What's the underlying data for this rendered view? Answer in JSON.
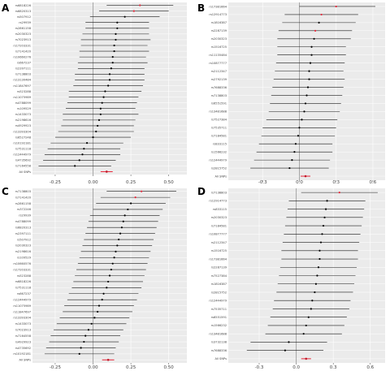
{
  "chart_data": [
    {
      "type": "scatter",
      "panel_label": "A",
      "xlim": [
        -0.4,
        0.62
      ],
      "xticks": [
        "-0.25",
        "0.00",
        "0.25",
        "0.50"
      ],
      "xtick_values": [
        -0.25,
        0.0,
        0.25,
        0.5
      ],
      "reference_line": 0,
      "grid": true,
      "summary_label": "All SNPs",
      "summary": {
        "estimate": 0.09,
        "low": 0.05,
        "high": 0.13
      },
      "snps": [
        {
          "snp": "rs6818226",
          "estimate": 0.31,
          "low": 0.09,
          "high": 0.53,
          "highlight": true
        },
        {
          "snp": "rs6820313",
          "estimate": 0.27,
          "low": 0.04,
          "high": 0.5,
          "highlight": true
        },
        {
          "snp": "rs507912",
          "estimate": 0.21,
          "low": -0.02,
          "high": 0.44,
          "highlight": false
        },
        {
          "snp": "rs29939",
          "estimate": 0.16,
          "low": -0.05,
          "high": 0.37,
          "highlight": false
        },
        {
          "snp": "rs2861158",
          "estimate": 0.16,
          "low": -0.05,
          "high": 0.37,
          "highlight": false
        },
        {
          "snp": "rs2030323",
          "estimate": 0.15,
          "low": -0.07,
          "high": 0.37,
          "highlight": false
        },
        {
          "snp": "rs7023913",
          "estimate": 0.15,
          "low": -0.08,
          "high": 0.38,
          "highlight": false
        },
        {
          "snp": "rs17203331",
          "estimate": 0.14,
          "low": -0.08,
          "high": 0.36,
          "highlight": false
        },
        {
          "snp": "rs7141420",
          "estimate": 0.14,
          "low": -0.09,
          "high": 0.37,
          "highlight": false
        },
        {
          "snp": "rs10660276",
          "estimate": 0.13,
          "low": -0.09,
          "high": 0.35,
          "highlight": false
        },
        {
          "snp": "rs667237",
          "estimate": 0.13,
          "low": -0.1,
          "high": 0.36,
          "highlight": false
        },
        {
          "snp": "rs2397111",
          "estimate": 0.12,
          "low": -0.1,
          "high": 0.34,
          "highlight": false
        },
        {
          "snp": "rs7138803",
          "estimate": 0.11,
          "low": -0.12,
          "high": 0.34,
          "highlight": false
        },
        {
          "snp": "rs13130484",
          "estimate": 0.11,
          "low": -0.12,
          "high": 0.34,
          "highlight": false
        },
        {
          "snp": "rs11847697",
          "estimate": 0.1,
          "low": -0.13,
          "high": 0.33,
          "highlight": false
        },
        {
          "snp": "rs523288",
          "estimate": 0.08,
          "low": -0.16,
          "high": 0.32,
          "highlight": false
        },
        {
          "snp": "rs11075989",
          "estimate": 0.07,
          "low": -0.16,
          "high": 0.3,
          "highlight": false
        },
        {
          "snp": "rs4788099",
          "estimate": 0.06,
          "low": -0.17,
          "high": 0.29,
          "highlight": false
        },
        {
          "snp": "rs109529",
          "estimate": 0.05,
          "low": -0.18,
          "high": 0.28,
          "highlight": false
        },
        {
          "snp": "rs1433073",
          "estimate": 0.05,
          "low": -0.2,
          "high": 0.3,
          "highlight": false
        },
        {
          "snp": "rs2198616",
          "estimate": 0.04,
          "low": -0.2,
          "high": 0.28,
          "highlight": false
        },
        {
          "snp": "rs4929923",
          "estimate": 0.03,
          "low": -0.21,
          "high": 0.27,
          "highlight": false
        },
        {
          "snp": "rs13393304",
          "estimate": 0.02,
          "low": -0.23,
          "high": 0.27,
          "highlight": false
        },
        {
          "snp": "rs6527248",
          "estimate": 0.0,
          "low": -0.25,
          "high": 0.25,
          "highlight": false
        },
        {
          "snp": "rs10192181",
          "estimate": -0.04,
          "low": -0.28,
          "high": 0.2,
          "highlight": false
        },
        {
          "snp": "rs7531118",
          "estimate": -0.06,
          "low": -0.3,
          "high": 0.18,
          "highlight": false
        },
        {
          "snp": "rs12444979",
          "estimate": -0.07,
          "low": -0.32,
          "high": 0.18,
          "highlight": false
        },
        {
          "snp": "rs4735692",
          "estimate": -0.09,
          "low": -0.33,
          "high": 0.15,
          "highlight": false
        },
        {
          "snp": "rs7164558",
          "estimate": -0.12,
          "low": -0.36,
          "high": 0.12,
          "highlight": false
        }
      ]
    },
    {
      "type": "scatter",
      "panel_label": "B",
      "xlim": [
        -0.58,
        0.7
      ],
      "xticks": [
        "-0.3",
        "0.0",
        "0.3",
        "0.6"
      ],
      "xtick_values": [
        -0.3,
        0.0,
        0.3,
        0.6
      ],
      "reference_line": 0,
      "grid": true,
      "summary_label": "All SNPs",
      "summary": {
        "estimate": 0.05,
        "low": 0.01,
        "high": 0.09
      },
      "snps": [
        {
          "snp": "rs17381664",
          "estimate": 0.3,
          "low": 0.0,
          "high": 0.62,
          "highlight": true
        },
        {
          "snp": "rs12914773",
          "estimate": 0.18,
          "low": -0.12,
          "high": 0.48,
          "highlight": true
        },
        {
          "snp": "rs1816387",
          "estimate": 0.16,
          "low": -0.14,
          "high": 0.46,
          "highlight": false
        },
        {
          "snp": "rs2287139",
          "estimate": 0.13,
          "low": -0.17,
          "high": 0.43,
          "highlight": true
        },
        {
          "snp": "rs2030323",
          "estimate": 0.12,
          "low": -0.18,
          "high": 0.42,
          "highlight": false
        },
        {
          "snp": "rs1516725",
          "estimate": 0.1,
          "low": -0.18,
          "high": 0.38,
          "highlight": false
        },
        {
          "snp": "rs11135484",
          "estimate": 0.1,
          "low": -0.18,
          "high": 0.38,
          "highlight": false
        },
        {
          "snp": "rs10877777",
          "estimate": 0.09,
          "low": -0.19,
          "high": 0.37,
          "highlight": false
        },
        {
          "snp": "rs2112347",
          "estimate": 0.08,
          "low": -0.2,
          "high": 0.36,
          "highlight": false
        },
        {
          "snp": "rs2792139",
          "estimate": 0.08,
          "low": -0.21,
          "high": 0.37,
          "highlight": false
        },
        {
          "snp": "rs7688336",
          "estimate": 0.07,
          "low": -0.22,
          "high": 0.36,
          "highlight": false
        },
        {
          "snp": "rs7138803",
          "estimate": 0.06,
          "low": -0.23,
          "high": 0.35,
          "highlight": false
        },
        {
          "snp": "rs6551591",
          "estimate": 0.05,
          "low": -0.24,
          "high": 0.34,
          "highlight": false
        },
        {
          "snp": "rs13481688",
          "estimate": 0.04,
          "low": -0.25,
          "high": 0.33,
          "highlight": false
        },
        {
          "snp": "rs7527384",
          "estimate": 0.02,
          "low": -0.27,
          "high": 0.31,
          "highlight": false
        },
        {
          "snp": "rs7535711",
          "estimate": 0.0,
          "low": -0.3,
          "high": 0.3,
          "highlight": false
        },
        {
          "snp": "rs7184581",
          "estimate": -0.01,
          "low": -0.31,
          "high": 0.29,
          "highlight": false
        },
        {
          "snp": "rs833115",
          "estimate": -0.03,
          "low": -0.33,
          "high": 0.27,
          "highlight": false
        },
        {
          "snp": "rs1566232",
          "estimate": -0.04,
          "low": -0.35,
          "high": 0.27,
          "highlight": false
        },
        {
          "snp": "rs12444979",
          "estimate": -0.06,
          "low": -0.37,
          "high": 0.25,
          "highlight": false
        },
        {
          "snp": "rs2815752",
          "estimate": -0.08,
          "low": -0.4,
          "high": 0.24,
          "highlight": false
        }
      ]
    },
    {
      "type": "scatter",
      "panel_label": "C",
      "xlim": [
        -0.4,
        0.62
      ],
      "xticks": [
        "-0.25",
        "0.00",
        "0.25",
        "0.50"
      ],
      "xtick_values": [
        -0.25,
        0.0,
        0.25,
        0.5
      ],
      "reference_line": 0,
      "grid": true,
      "summary_label": "All SNPs",
      "summary": {
        "estimate": 0.1,
        "low": 0.06,
        "high": 0.14
      },
      "snps": [
        {
          "snp": "rs7138803",
          "estimate": 0.32,
          "low": 0.09,
          "high": 0.55,
          "highlight": true
        },
        {
          "snp": "rs7141420",
          "estimate": 0.28,
          "low": 0.05,
          "high": 0.51,
          "highlight": true
        },
        {
          "snp": "rs2861158",
          "estimate": 0.25,
          "low": 0.02,
          "high": 0.48,
          "highlight": false
        },
        {
          "snp": "rs372246",
          "estimate": 0.23,
          "low": 0.0,
          "high": 0.46,
          "highlight": false
        },
        {
          "snp": "rs29939",
          "estimate": 0.21,
          "low": -0.02,
          "high": 0.44,
          "highlight": false
        },
        {
          "snp": "rs4788099",
          "estimate": 0.2,
          "low": -0.03,
          "high": 0.43,
          "highlight": false
        },
        {
          "snp": "rs6820313",
          "estimate": 0.19,
          "low": -0.04,
          "high": 0.42,
          "highlight": false
        },
        {
          "snp": "rs2397111",
          "estimate": 0.18,
          "low": -0.05,
          "high": 0.41,
          "highlight": false
        },
        {
          "snp": "rs507912",
          "estimate": 0.17,
          "low": -0.06,
          "high": 0.4,
          "highlight": false
        },
        {
          "snp": "rs2030323",
          "estimate": 0.16,
          "low": -0.07,
          "high": 0.39,
          "highlight": false
        },
        {
          "snp": "rs2198616",
          "estimate": 0.15,
          "low": -0.08,
          "high": 0.38,
          "highlight": false
        },
        {
          "snp": "rs109529",
          "estimate": 0.14,
          "low": -0.09,
          "high": 0.37,
          "highlight": false
        },
        {
          "snp": "rs10660576",
          "estimate": 0.13,
          "low": -0.1,
          "high": 0.36,
          "highlight": false
        },
        {
          "snp": "rs17203331",
          "estimate": 0.12,
          "low": -0.11,
          "high": 0.35,
          "highlight": false
        },
        {
          "snp": "rs523288",
          "estimate": 0.11,
          "low": -0.12,
          "high": 0.34,
          "highlight": false
        },
        {
          "snp": "rs6818226",
          "estimate": 0.1,
          "low": -0.13,
          "high": 0.33,
          "highlight": false
        },
        {
          "snp": "rs7531118",
          "estimate": 0.09,
          "low": -0.14,
          "high": 0.32,
          "highlight": false
        },
        {
          "snp": "rs667237",
          "estimate": 0.07,
          "low": -0.16,
          "high": 0.3,
          "highlight": false
        },
        {
          "snp": "rs12444979",
          "estimate": 0.06,
          "low": -0.17,
          "high": 0.29,
          "highlight": false
        },
        {
          "snp": "rs11075989",
          "estimate": 0.04,
          "low": -0.19,
          "high": 0.27,
          "highlight": false
        },
        {
          "snp": "rs11847697",
          "estimate": 0.03,
          "low": -0.2,
          "high": 0.26,
          "highlight": false
        },
        {
          "snp": "rs13393304",
          "estimate": 0.01,
          "low": -0.22,
          "high": 0.24,
          "highlight": false
        },
        {
          "snp": "rs1433073",
          "estimate": -0.01,
          "low": -0.24,
          "high": 0.22,
          "highlight": false
        },
        {
          "snp": "rs7023913",
          "estimate": -0.03,
          "low": -0.26,
          "high": 0.2,
          "highlight": false
        },
        {
          "snp": "rs7164558",
          "estimate": -0.05,
          "low": -0.28,
          "high": 0.18,
          "highlight": false
        },
        {
          "snp": "rs4929923",
          "estimate": -0.06,
          "low": -0.29,
          "high": 0.17,
          "highlight": false
        },
        {
          "snp": "rs4735692",
          "estimate": -0.08,
          "low": -0.31,
          "high": 0.15,
          "highlight": false
        },
        {
          "snp": "rs10192181",
          "estimate": -0.09,
          "low": -0.32,
          "high": 0.14,
          "highlight": false
        }
      ]
    },
    {
      "type": "scatter",
      "panel_label": "D",
      "xlim": [
        -0.55,
        0.72
      ],
      "xticks": [
        "-0.3",
        "0.0",
        "0.3",
        "0.6"
      ],
      "xtick_values": [
        -0.3,
        0.0,
        0.3,
        0.6
      ],
      "reference_line": 0,
      "grid": true,
      "summary_label": "All SNPs",
      "summary": {
        "estimate": 0.08,
        "low": 0.04,
        "high": 0.12
      },
      "snps": [
        {
          "snp": "rs7138803",
          "estimate": 0.35,
          "low": 0.04,
          "high": 0.66,
          "highlight": true
        },
        {
          "snp": "rs12914773",
          "estimate": 0.25,
          "low": -0.06,
          "high": 0.56,
          "highlight": false
        },
        {
          "snp": "rs833115",
          "estimate": 0.24,
          "low": -0.07,
          "high": 0.55,
          "highlight": false
        },
        {
          "snp": "rs2030323",
          "estimate": 0.23,
          "low": -0.08,
          "high": 0.54,
          "highlight": false
        },
        {
          "snp": "rs7184581",
          "estimate": 0.22,
          "low": -0.09,
          "high": 0.53,
          "highlight": false
        },
        {
          "snp": "rs10877777",
          "estimate": 0.21,
          "low": -0.1,
          "high": 0.52,
          "highlight": false
        },
        {
          "snp": "rs2112347",
          "estimate": 0.2,
          "low": -0.11,
          "high": 0.51,
          "highlight": false
        },
        {
          "snp": "rs1516725",
          "estimate": 0.19,
          "low": -0.12,
          "high": 0.5,
          "highlight": false
        },
        {
          "snp": "rs17381664",
          "estimate": 0.19,
          "low": -0.12,
          "high": 0.5,
          "highlight": false
        },
        {
          "snp": "rs2287139",
          "estimate": 0.18,
          "low": -0.13,
          "high": 0.49,
          "highlight": false
        },
        {
          "snp": "rs7527384",
          "estimate": 0.17,
          "low": -0.14,
          "high": 0.48,
          "highlight": false
        },
        {
          "snp": "rs1816387",
          "estimate": 0.16,
          "low": -0.15,
          "high": 0.47,
          "highlight": false
        },
        {
          "snp": "rs2815752",
          "estimate": 0.15,
          "low": -0.16,
          "high": 0.46,
          "highlight": false
        },
        {
          "snp": "rs12444979",
          "estimate": 0.13,
          "low": -0.18,
          "high": 0.44,
          "highlight": false
        },
        {
          "snp": "rs7535711",
          "estimate": 0.12,
          "low": -0.19,
          "high": 0.43,
          "highlight": false
        },
        {
          "snp": "rs6551591",
          "estimate": 0.1,
          "low": -0.21,
          "high": 0.41,
          "highlight": false
        },
        {
          "snp": "rs1566232",
          "estimate": 0.08,
          "low": -0.23,
          "high": 0.39,
          "highlight": false
        },
        {
          "snp": "rs13481688",
          "estimate": 0.06,
          "low": -0.25,
          "high": 0.37,
          "highlight": false
        },
        {
          "snp": "rs3732138",
          "estimate": -0.06,
          "low": -0.37,
          "high": 0.25,
          "highlight": false
        },
        {
          "snp": "rs7688336",
          "estimate": -0.09,
          "low": -0.4,
          "high": 0.22,
          "highlight": false
        }
      ]
    }
  ],
  "colors": {
    "panel_background": "#ebebeb",
    "grid": "#ffffff",
    "reference_line": "#9e9e9e",
    "ci_line": "#1a1a1a",
    "point": "#000000",
    "highlight_point": "#e8273a",
    "summary_line": "#e8273a",
    "summary_point": "#c21a2a"
  }
}
